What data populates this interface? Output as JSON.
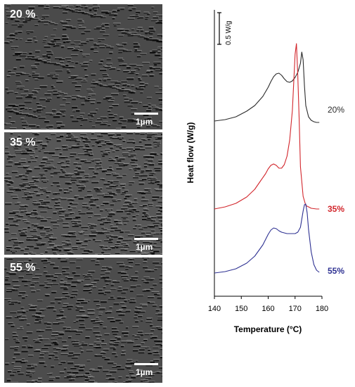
{
  "panels": [
    {
      "label": "20 %",
      "scale": "1µm",
      "base": "#4a4a4a"
    },
    {
      "label": "35 %",
      "scale": "1µm",
      "base": "#575757"
    },
    {
      "label": "55 %",
      "scale": "1µm",
      "base": "#4c4c4c"
    }
  ],
  "chart_data": {
    "type": "line",
    "title": "",
    "xlabel": "Temperature (°C)",
    "ylabel": "Heat flow (W/g)",
    "xlim": [
      140,
      180
    ],
    "xticks": [
      140,
      150,
      160,
      170,
      180
    ],
    "scale_bar_label": "0.5 W/g",
    "grid": false,
    "series": [
      {
        "name": "20%",
        "color": "#2b2b2b",
        "x": [
          140,
          144,
          148,
          152,
          155,
          158,
          160,
          161,
          162,
          163,
          164,
          165,
          166,
          167,
          168,
          169,
          170,
          171,
          172,
          172.5,
          173,
          173.5,
          174,
          175,
          176,
          177,
          178,
          179
        ],
        "y": [
          1.3,
          1.32,
          1.36,
          1.44,
          1.52,
          1.65,
          1.78,
          1.86,
          1.93,
          1.97,
          1.98,
          1.95,
          1.9,
          1.86,
          1.85,
          1.87,
          1.92,
          1.99,
          2.12,
          2.28,
          2.17,
          1.8,
          1.52,
          1.36,
          1.31,
          1.29,
          1.28,
          1.28
        ]
      },
      {
        "name": "35%",
        "color": "#d2252b",
        "x": [
          140,
          144,
          148,
          152,
          155,
          157,
          159,
          160,
          161,
          162,
          163,
          164,
          165,
          166,
          167,
          168,
          169,
          170,
          170.5,
          171,
          171.5,
          172,
          173,
          174,
          176,
          178,
          179
        ],
        "y": [
          0.0,
          0.03,
          0.08,
          0.17,
          0.28,
          0.39,
          0.5,
          0.57,
          0.62,
          0.64,
          0.62,
          0.58,
          0.58,
          0.63,
          0.75,
          0.98,
          1.4,
          2.2,
          2.35,
          1.9,
          1.3,
          0.6,
          0.18,
          0.05,
          0.01,
          0.0,
          0.0
        ]
      },
      {
        "name": "55%",
        "color": "#2e3192",
        "x": [
          140,
          144,
          148,
          152,
          155,
          158,
          160,
          161,
          162,
          163,
          164,
          165,
          166,
          167,
          168,
          169,
          170,
          171,
          172,
          173,
          173.5,
          174,
          174.5,
          175,
          176,
          177,
          178,
          179
        ],
        "y": [
          0.1,
          0.12,
          0.16,
          0.24,
          0.34,
          0.5,
          0.65,
          0.71,
          0.74,
          0.73,
          0.7,
          0.68,
          0.67,
          0.66,
          0.66,
          0.66,
          0.66,
          0.68,
          0.75,
          0.98,
          1.07,
          1.08,
          0.95,
          0.72,
          0.4,
          0.22,
          0.14,
          0.11
        ]
      }
    ],
    "scale_bar": 0.5
  }
}
